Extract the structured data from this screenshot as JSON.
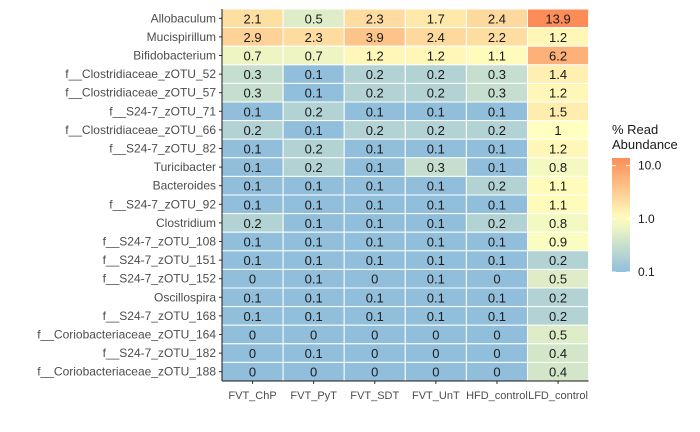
{
  "chart_data": {
    "type": "heatmap",
    "x": [
      "FVT_ChP",
      "FVT_PyT",
      "FVT_SDT",
      "FVT_UnT",
      "HFD_control",
      "LFD_control"
    ],
    "y": [
      "Allobaculum",
      "Mucispirillum",
      "Bifidobacterium",
      "f__Clostridiaceae_zOTU_52",
      "f__Clostridiaceae_zOTU_57",
      "f__S24-7_zOTU_71",
      "f__Clostridiaceae_zOTU_66",
      "f__S24-7_zOTU_82",
      "Turicibacter",
      "Bacteroides",
      "f__S24-7_zOTU_92",
      "Clostridium",
      "f__S24-7_zOTU_108",
      "f__S24-7_zOTU_151",
      "f__S24-7_zOTU_152",
      "Oscillospira",
      "f__S24-7_zOTU_168",
      "f__Coriobacteriaceae_zOTU_164",
      "f__S24-7_zOTU_182",
      "f__Coriobacteriaceae_zOTU_188"
    ],
    "values": [
      [
        2.1,
        0.5,
        2.3,
        1.7,
        2.4,
        13.9
      ],
      [
        2.9,
        2.3,
        3.9,
        2.4,
        2.2,
        1.2
      ],
      [
        0.7,
        0.7,
        1.2,
        1.2,
        1.1,
        6.2
      ],
      [
        0.3,
        0.1,
        0.2,
        0.2,
        0.3,
        1.4
      ],
      [
        0.3,
        0.1,
        0.2,
        0.2,
        0.3,
        1.2
      ],
      [
        0.1,
        0.2,
        0.1,
        0.1,
        0.1,
        1.5
      ],
      [
        0.2,
        0.1,
        0.2,
        0.2,
        0.2,
        1
      ],
      [
        0.1,
        0.2,
        0.1,
        0.1,
        0.1,
        1.2
      ],
      [
        0.1,
        0.2,
        0.1,
        0.3,
        0.1,
        0.8
      ],
      [
        0.1,
        0.1,
        0.1,
        0.1,
        0.2,
        1.1
      ],
      [
        0.1,
        0.1,
        0.1,
        0.1,
        0.1,
        1.1
      ],
      [
        0.2,
        0.1,
        0.1,
        0.1,
        0.2,
        0.8
      ],
      [
        0.1,
        0.1,
        0.1,
        0.1,
        0.1,
        0.9
      ],
      [
        0.1,
        0.1,
        0.1,
        0.1,
        0.1,
        0.2
      ],
      [
        0,
        0.1,
        0,
        0.1,
        0,
        0.5
      ],
      [
        0.1,
        0.1,
        0.1,
        0.1,
        0.1,
        0.2
      ],
      [
        0.1,
        0.1,
        0.1,
        0.1,
        0.1,
        0.2
      ],
      [
        0,
        0,
        0,
        0,
        0,
        0.5
      ],
      [
        0,
        0.1,
        0,
        0,
        0,
        0.4
      ],
      [
        0,
        0,
        0,
        0,
        0,
        0.4
      ]
    ],
    "legend": {
      "title_lines": [
        "% Read",
        "Abundance"
      ],
      "ticks": [
        "10.0",
        "1.0",
        "0.1"
      ],
      "tick_values": [
        10,
        1,
        0.1
      ],
      "scale": "log10",
      "range": [
        0.1,
        13.9
      ],
      "placement": "right"
    },
    "colors": {
      "low": "#91bfdb",
      "mid": "#ffffbf",
      "high": "#fc8d59"
    }
  }
}
